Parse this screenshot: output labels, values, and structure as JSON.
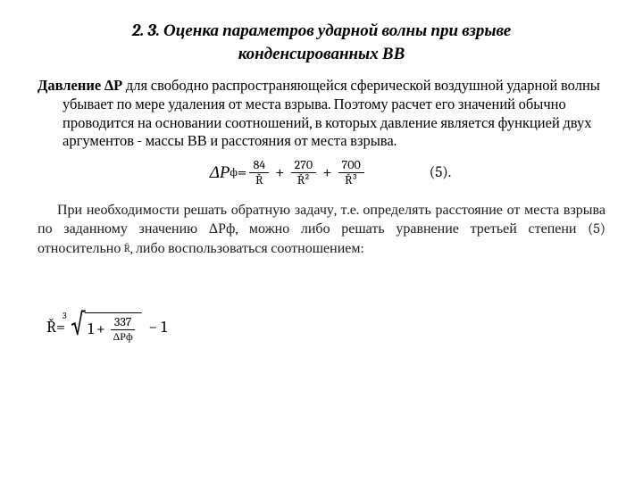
{
  "title": {
    "line1": "2. 3. Оценка  параметров  ударной  волны  при  взрыве",
    "line2": "конденсированных ВВ"
  },
  "paragraph1": {
    "bold": "Давление ΔР",
    "rest": " для свободно распространяющейся сферической воздушной ударной волны  убывает по мере удаления от места взрыва. Поэтому расчет его значений обычно проводится на основании соотношений, в которых давление является функцией двух аргументов - массы ВВ и расстояния от места взрыва."
  },
  "formula1": {
    "lhs": "ΔР",
    "lhs_sub": "ф",
    "eq": "=",
    "t1_num": "84",
    "t1_den": "Ř",
    "t2_num": "270",
    "t2_den": "Ř²",
    "t3_num": "700",
    "t3_den": "Ř³",
    "label": "(5)."
  },
  "paragraph2": {
    "pre": "При необходимости решать обратную задачу, т.е. определять расстояние от места взрыва по заданному значению ΔРф, можно либо решать уравнение третьей степени (5) относительно ",
    "rbar": "R̄",
    "post": ", либо воспользоваться соотношением:"
  },
  "formula2": {
    "lhs": "Ř",
    "eq": "=",
    "root_index": "3",
    "one": "1",
    "frac_num": "337",
    "frac_den": "ΔРф",
    "minus": "− 1"
  }
}
